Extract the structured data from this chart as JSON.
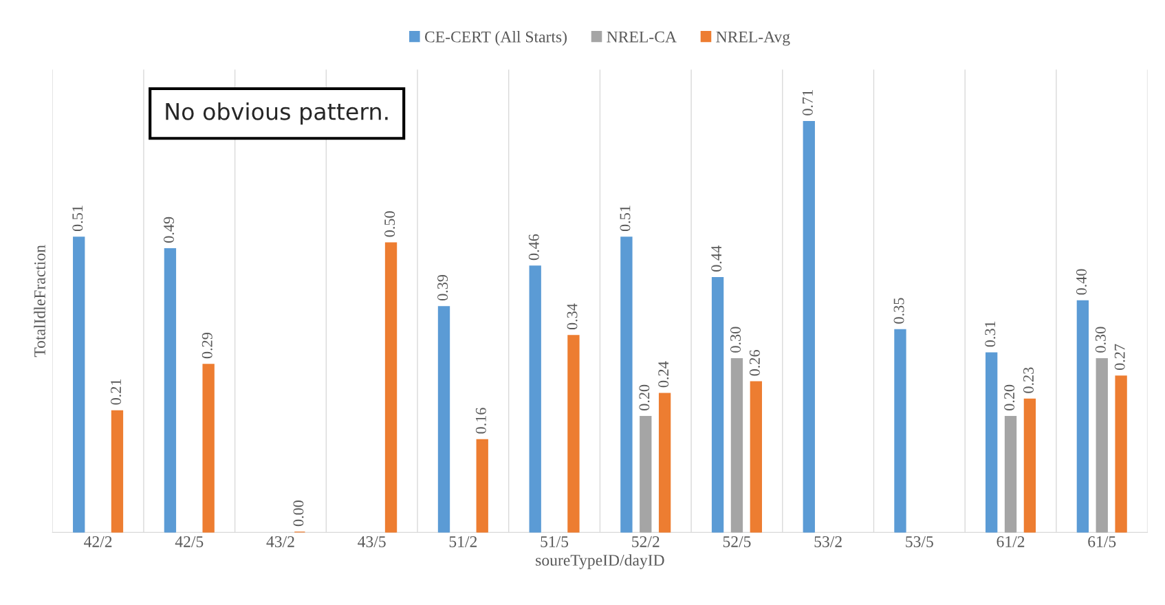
{
  "chart_data": {
    "type": "bar",
    "xlabel": "soureTypeID/dayID",
    "ylabel": "TotalIdleFraction",
    "categories": [
      "42/2",
      "42/5",
      "43/2",
      "43/5",
      "51/2",
      "51/5",
      "52/2",
      "52/5",
      "53/2",
      "53/5",
      "61/2",
      "61/5"
    ],
    "series": [
      {
        "name": "CE-CERT (All Starts)",
        "color": "#5b9bd5",
        "values": [
          0.51,
          0.49,
          null,
          null,
          0.39,
          0.46,
          0.51,
          0.44,
          0.71,
          0.35,
          0.31,
          0.4
        ],
        "value_labels": [
          "0.51",
          "0.49",
          null,
          null,
          "0.39",
          "0.46",
          "0.51",
          "0.44",
          "0.71",
          "0.35",
          "0.31",
          "0.40"
        ]
      },
      {
        "name": "NREL-CA",
        "color": "#a5a5a5",
        "values": [
          null,
          null,
          null,
          null,
          null,
          null,
          0.2,
          0.3,
          null,
          null,
          0.2,
          0.3
        ],
        "value_labels": [
          null,
          null,
          null,
          null,
          null,
          null,
          "0.20",
          "0.30",
          null,
          null,
          "0.20",
          "0.30"
        ]
      },
      {
        "name": "NREL-Avg",
        "color": "#ed7d31",
        "values": [
          0.21,
          0.29,
          0.0,
          0.5,
          0.16,
          0.34,
          0.24,
          0.26,
          null,
          null,
          0.23,
          0.27
        ],
        "value_labels": [
          "0.21",
          "0.29",
          "0.00",
          "0.50",
          "0.16",
          "0.34",
          "0.24",
          "0.26",
          null,
          null,
          "0.23",
          "0.27"
        ]
      }
    ],
    "ylim": [
      0,
      0.8
    ],
    "tick_labels": "x",
    "grid": "x",
    "legend": "top",
    "annotations": [
      "No obvious pattern."
    ]
  }
}
